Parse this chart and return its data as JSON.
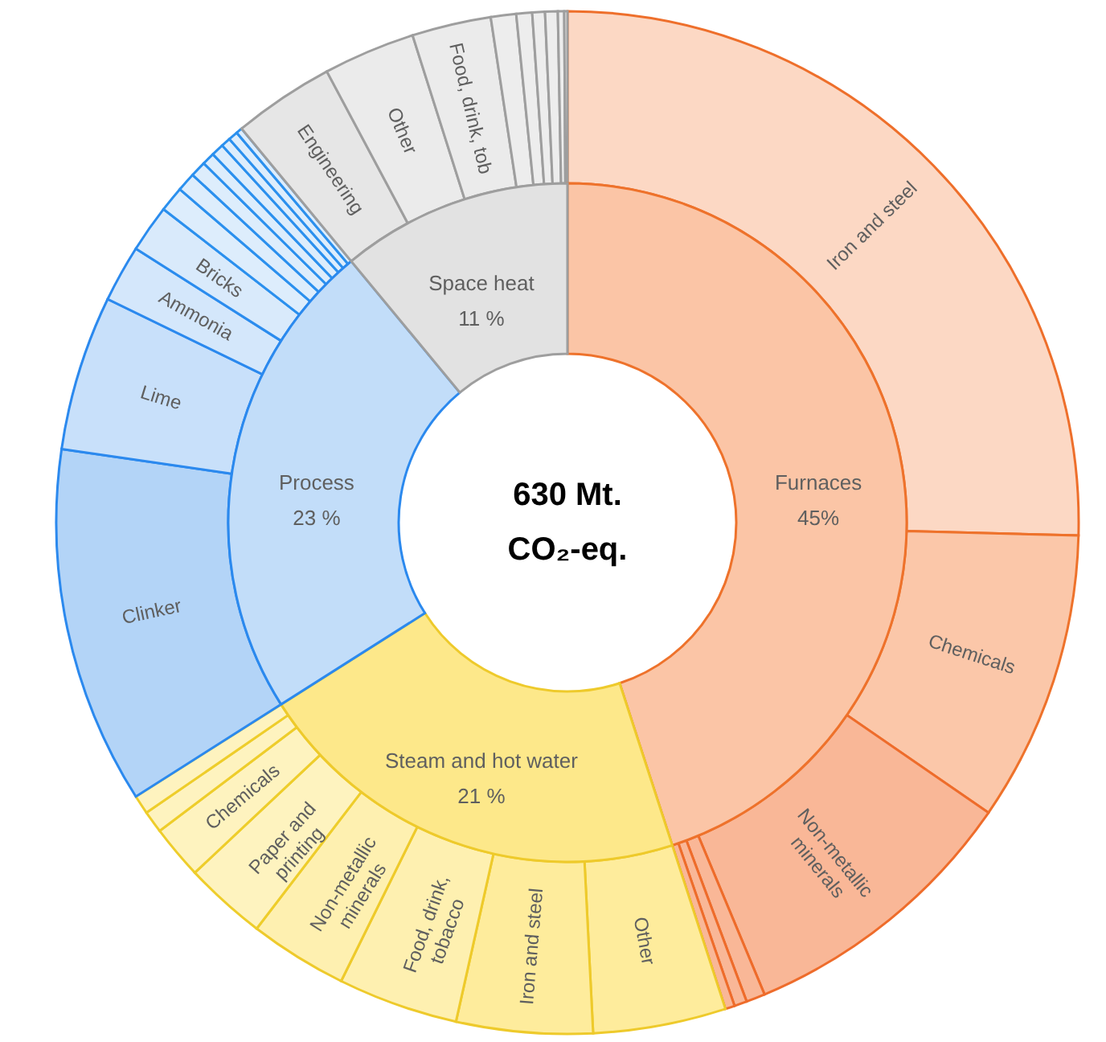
{
  "chart_data": [
    {
      "type": "donut",
      "categories": [
        "Furnaces",
        "Steam and hot water",
        "Process",
        "Space heat"
      ],
      "values": [
        45,
        21,
        23,
        11
      ],
      "value_labels": [
        "45%",
        "21 %",
        "23 %",
        "11 %"
      ],
      "colors": [
        "#fbc5a6",
        "#fde88a",
        "#c2ddf9",
        "#e2e2e2"
      ],
      "annotations": [
        "630 Mt. CO₂-eq."
      ]
    },
    {
      "type": "donut",
      "categories": [
        "Iron and steel",
        "Chemicals",
        "Non-metallic minerals",
        null,
        null,
        null,
        "Other",
        "Iron and steel",
        "Food, drink, tobacco",
        "Non-metallic minerals",
        "Paper and printing",
        "Chemicals",
        null,
        null,
        "Clinker",
        "Lime",
        "Ammonia",
        "Bricks",
        null,
        null,
        null,
        null,
        null,
        null,
        null,
        null,
        "Engineering",
        "Other",
        "Food, drink, tob",
        null,
        null,
        null,
        null,
        null,
        null
      ],
      "values": [
        25.4,
        9.2,
        9.1,
        0.6,
        0.4,
        0.3,
        4.2,
        4.3,
        3.8,
        3.1,
        2.6,
        1.7,
        0.7,
        0.6,
        11.3,
        4.9,
        1.8,
        1.5,
        0.8,
        0.6,
        0.5,
        0.4,
        0.4,
        0.3,
        0.3,
        0.2,
        3.2,
        2.9,
        2.5,
        0.8,
        0.5,
        0.4,
        0.4,
        0.2,
        0.1
      ],
      "colors": [
        "#fcd8c4",
        "#fbc7a9",
        "#f9b797",
        "#f9b797",
        "#f9b797",
        "#f9b797",
        "#feec9c",
        "#feec9c",
        "#fef0b0",
        "#fef0b0",
        "#fef3bf",
        "#fef3bf",
        "#fef3bf",
        "#fef3bf",
        "#b3d4f7",
        "#c8e0fa",
        "#d4e7fb",
        "#d9eafb",
        "#ddedfc",
        "#ddedfc",
        "#ddedfc",
        "#ddedfc",
        "#ddedfc",
        "#ddedfc",
        "#ddedfc",
        "#ddedfc",
        "#e6e6e6",
        "#ebebeb",
        "#ebebeb",
        "#ededed",
        "#ededed",
        "#ededed",
        "#ededed",
        "#ededed",
        "#ededed"
      ]
    }
  ]
}
